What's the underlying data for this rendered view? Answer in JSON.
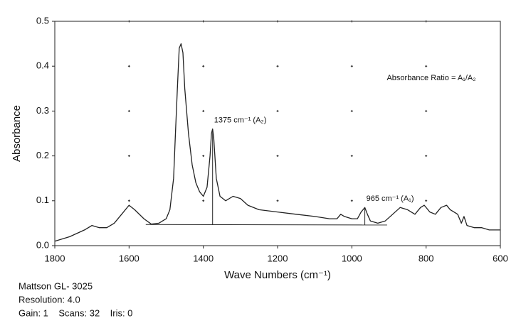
{
  "chart_data": {
    "type": "line",
    "ylabel": "Absorbance",
    "xlabel": "Wave Numbers (cm⁻¹)",
    "xlim": [
      1800,
      600
    ],
    "ylim": [
      0,
      0.5
    ],
    "xticks": [
      1800,
      1600,
      1400,
      1200,
      1000,
      800,
      600
    ],
    "yticks": [
      {
        "value": 0,
        "label": "0.0"
      },
      0.1,
      0.2,
      0.3,
      0.4,
      0.5
    ],
    "grid": true,
    "color": "#222222",
    "x": [
      1800,
      1760,
      1720,
      1700,
      1680,
      1660,
      1640,
      1620,
      1600,
      1585,
      1560,
      1540,
      1520,
      1500,
      1490,
      1480,
      1475,
      1470,
      1465,
      1460,
      1455,
      1450,
      1440,
      1430,
      1420,
      1410,
      1400,
      1390,
      1382,
      1378,
      1375,
      1372,
      1365,
      1355,
      1340,
      1320,
      1300,
      1280,
      1250,
      1200,
      1150,
      1100,
      1060,
      1040,
      1030,
      1020,
      1000,
      985,
      975,
      965,
      958,
      950,
      930,
      910,
      890,
      870,
      850,
      830,
      815,
      805,
      790,
      775,
      760,
      745,
      735,
      725,
      715,
      705,
      698,
      690,
      670,
      650,
      630,
      600
    ],
    "values": [
      0.01,
      0.02,
      0.035,
      0.045,
      0.04,
      0.04,
      0.05,
      0.07,
      0.09,
      0.08,
      0.06,
      0.048,
      0.05,
      0.06,
      0.08,
      0.15,
      0.25,
      0.35,
      0.44,
      0.45,
      0.43,
      0.35,
      0.25,
      0.18,
      0.14,
      0.12,
      0.11,
      0.13,
      0.2,
      0.25,
      0.26,
      0.24,
      0.15,
      0.11,
      0.1,
      0.11,
      0.105,
      0.09,
      0.08,
      0.075,
      0.07,
      0.065,
      0.06,
      0.06,
      0.07,
      0.065,
      0.06,
      0.06,
      0.075,
      0.085,
      0.07,
      0.055,
      0.05,
      0.055,
      0.07,
      0.085,
      0.08,
      0.07,
      0.085,
      0.09,
      0.075,
      0.07,
      0.085,
      0.09,
      0.08,
      0.075,
      0.07,
      0.05,
      0.065,
      0.045,
      0.04,
      0.04,
      0.035,
      0.035
    ],
    "baseline": {
      "x": [
        1555,
        905
      ],
      "values": [
        0.047,
        0.046
      ]
    },
    "annotations": [
      {
        "text": "1375 cm⁻¹ (A₂)",
        "x": 1375,
        "y": 0.26,
        "base": 0.047
      },
      {
        "text": "965 cm⁻¹ (A₁)",
        "x": 965,
        "y": 0.085,
        "base": 0.046
      }
    ],
    "note": "Absorbance Ratio = A₁/A₂",
    "footer": [
      "Mattson GL- 3025",
      "Resolution: 4.0",
      "Gain: 1    Scans: 32    Iris: 0"
    ]
  }
}
